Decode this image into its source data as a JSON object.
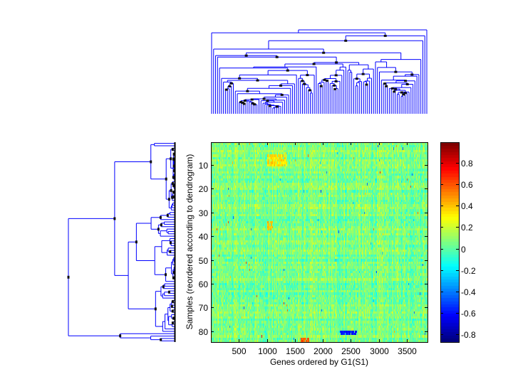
{
  "chart_data": {
    "type": "heatmap",
    "title": "",
    "xlabel": "Genes ordered by G1(S1)",
    "ylabel": "Samples (reordered according to dendrogram)",
    "n_rows": 84,
    "n_cols": 3870,
    "xlim": [
      0,
      3870
    ],
    "ylim": [
      0.5,
      84.5
    ],
    "y_reversed": true,
    "x_ticks": [
      500,
      1000,
      1500,
      2000,
      2500,
      3000,
      3500
    ],
    "x_tick_labels": [
      "500",
      "1000",
      "1500",
      "2000",
      "2500",
      "3000",
      "3500"
    ],
    "y_ticks": [
      10,
      20,
      30,
      40,
      50,
      60,
      70,
      80
    ],
    "y_tick_labels": [
      "10",
      "20",
      "30",
      "40",
      "50",
      "60",
      "70",
      "80"
    ],
    "colormap": "jet",
    "clim": [
      -0.87,
      0.99
    ],
    "colorbar": {
      "ticks": [
        0.8,
        0.6,
        0.4,
        0.2,
        0,
        -0.2,
        -0.4,
        -0.6,
        -0.8
      ],
      "tick_labels": [
        "0.8",
        "0.6",
        "0.4",
        "0.2",
        "0",
        "-0.2",
        "-0.4",
        "-0.6",
        "-0.8"
      ],
      "location": "right"
    },
    "typical_value_range": [
      -0.3,
      0.3
    ],
    "hot_patches": [
      {
        "rows": [
          6,
          10
        ],
        "cols": [
          1000,
          1350
        ],
        "value": 0.35
      },
      {
        "rows": [
          34,
          37
        ],
        "cols": [
          1000,
          1100
        ],
        "value": 0.4
      },
      {
        "rows": [
          83,
          84
        ],
        "cols": [
          1600,
          1750
        ],
        "value": 0.6
      },
      {
        "rows": [
          80,
          81
        ],
        "cols": [
          2300,
          2600
        ],
        "value": -0.6
      }
    ],
    "row_dendrogram": {
      "leaves": 84,
      "position": "left",
      "line_color": "#0000ff"
    },
    "col_dendrogram": {
      "position": "top",
      "line_color": "#0000ff"
    }
  }
}
